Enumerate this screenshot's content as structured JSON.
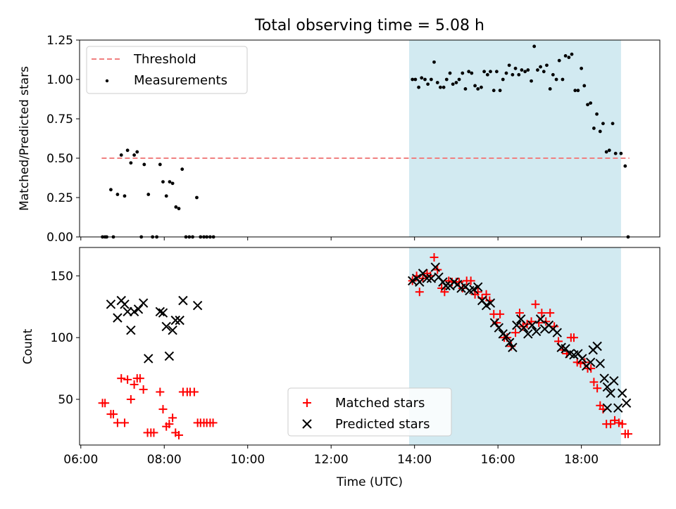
{
  "chart_data": {
    "title": "Total observing time = 5.08 h",
    "xlabel": "Time (UTC)",
    "x_ticks": [
      "06:00",
      "08:00",
      "10:00",
      "12:00",
      "14:00",
      "16:00",
      "18:00"
    ],
    "x_tick_hours": [
      6,
      8,
      10,
      12,
      14,
      16,
      18
    ],
    "xlim_hours": [
      5.97,
      19.88
    ],
    "observing_window_hours": [
      13.87,
      18.95
    ],
    "window_color": "#add8e6",
    "top": {
      "type": "scatter",
      "ylabel": "Matched/Predicted stars",
      "ylim": [
        0,
        1.25
      ],
      "y_ticks": [
        "0.00",
        "0.25",
        "0.50",
        "0.75",
        "1.00",
        "1.25"
      ],
      "y_tick_values": [
        0,
        0.25,
        0.5,
        0.75,
        1.0,
        1.25
      ],
      "threshold": {
        "name": "Threshold",
        "value": 0.5,
        "x_range_hours": [
          6.5,
          19.15
        ],
        "color": "#f08080"
      },
      "measurements_name": "Measurements",
      "measurements": [
        [
          6.52,
          0
        ],
        [
          6.58,
          0
        ],
        [
          6.62,
          0
        ],
        [
          6.72,
          0.3
        ],
        [
          6.78,
          0
        ],
        [
          6.88,
          0.27
        ],
        [
          6.97,
          0.52
        ],
        [
          7.05,
          0.26
        ],
        [
          7.12,
          0.55
        ],
        [
          7.2,
          0.47
        ],
        [
          7.28,
          0.52
        ],
        [
          7.35,
          0.54
        ],
        [
          7.45,
          0
        ],
        [
          7.52,
          0.46
        ],
        [
          7.62,
          0.27
        ],
        [
          7.72,
          0
        ],
        [
          7.82,
          0
        ],
        [
          7.9,
          0.46
        ],
        [
          7.97,
          0.35
        ],
        [
          8.05,
          0.26
        ],
        [
          8.13,
          0.35
        ],
        [
          8.2,
          0.34
        ],
        [
          8.28,
          0.19
        ],
        [
          8.35,
          0.18
        ],
        [
          8.43,
          0.43
        ],
        [
          8.52,
          0
        ],
        [
          8.6,
          0
        ],
        [
          8.68,
          0
        ],
        [
          8.78,
          0.25
        ],
        [
          8.87,
          0
        ],
        [
          8.95,
          0
        ],
        [
          9.02,
          0
        ],
        [
          9.1,
          0
        ],
        [
          9.18,
          0
        ],
        [
          13.95,
          1.0
        ],
        [
          14.02,
          1.0
        ],
        [
          14.1,
          0.95
        ],
        [
          14.17,
          1.01
        ],
        [
          14.25,
          1.0
        ],
        [
          14.32,
          0.97
        ],
        [
          14.4,
          1.0
        ],
        [
          14.47,
          1.11
        ],
        [
          14.55,
          0.98
        ],
        [
          14.62,
          0.95
        ],
        [
          14.7,
          0.95
        ],
        [
          14.77,
          1.0
        ],
        [
          14.85,
          1.04
        ],
        [
          14.92,
          0.97
        ],
        [
          15.0,
          0.98
        ],
        [
          15.07,
          1.0
        ],
        [
          15.15,
          1.04
        ],
        [
          15.22,
          0.94
        ],
        [
          15.3,
          1.05
        ],
        [
          15.37,
          1.04
        ],
        [
          15.45,
          0.96
        ],
        [
          15.52,
          0.94
        ],
        [
          15.6,
          0.95
        ],
        [
          15.67,
          1.05
        ],
        [
          15.75,
          1.03
        ],
        [
          15.82,
          1.05
        ],
        [
          15.9,
          0.93
        ],
        [
          15.97,
          1.05
        ],
        [
          16.05,
          0.93
        ],
        [
          16.12,
          1.0
        ],
        [
          16.2,
          1.04
        ],
        [
          16.27,
          1.09
        ],
        [
          16.35,
          1.03
        ],
        [
          16.42,
          1.07
        ],
        [
          16.5,
          1.03
        ],
        [
          16.57,
          1.06
        ],
        [
          16.65,
          1.05
        ],
        [
          16.72,
          1.06
        ],
        [
          16.8,
          0.99
        ],
        [
          16.87,
          1.21
        ],
        [
          16.95,
          1.06
        ],
        [
          17.02,
          1.08
        ],
        [
          17.1,
          1.05
        ],
        [
          17.17,
          1.09
        ],
        [
          17.25,
          0.94
        ],
        [
          17.32,
          1.03
        ],
        [
          17.4,
          1.0
        ],
        [
          17.47,
          1.12
        ],
        [
          17.55,
          1.0
        ],
        [
          17.62,
          1.15
        ],
        [
          17.7,
          1.14
        ],
        [
          17.77,
          1.16
        ],
        [
          17.85,
          0.93
        ],
        [
          17.92,
          0.93
        ],
        [
          18.0,
          1.07
        ],
        [
          18.07,
          0.96
        ],
        [
          18.15,
          0.84
        ],
        [
          18.22,
          0.85
        ],
        [
          18.3,
          0.69
        ],
        [
          18.37,
          0.78
        ],
        [
          18.45,
          0.67
        ],
        [
          18.52,
          0.72
        ],
        [
          18.6,
          0.54
        ],
        [
          18.67,
          0.55
        ],
        [
          18.75,
          0.72
        ],
        [
          18.82,
          0.53
        ],
        [
          18.95,
          0.53
        ],
        [
          19.05,
          0.45
        ],
        [
          19.12,
          0
        ]
      ]
    },
    "bottom": {
      "type": "scatter",
      "ylabel": "Count",
      "ylim": [
        13,
        173
      ],
      "y_ticks": [
        "50",
        "100",
        "150"
      ],
      "y_tick_values": [
        50,
        100,
        150
      ],
      "matched_name": "Matched stars",
      "predicted_name": "Predicted stars",
      "matched_color": "#ff0000",
      "predicted_color": "#000000",
      "matched": [
        [
          6.52,
          47
        ],
        [
          6.58,
          47
        ],
        [
          6.72,
          38
        ],
        [
          6.78,
          38
        ],
        [
          6.88,
          31
        ],
        [
          6.97,
          67
        ],
        [
          7.05,
          31
        ],
        [
          7.12,
          66
        ],
        [
          7.2,
          50
        ],
        [
          7.28,
          62
        ],
        [
          7.35,
          67
        ],
        [
          7.42,
          67
        ],
        [
          7.5,
          58
        ],
        [
          7.6,
          23
        ],
        [
          7.68,
          23
        ],
        [
          7.75,
          23
        ],
        [
          7.9,
          56
        ],
        [
          7.97,
          42
        ],
        [
          8.05,
          28
        ],
        [
          8.12,
          30
        ],
        [
          8.2,
          35
        ],
        [
          8.27,
          23
        ],
        [
          8.35,
          21
        ],
        [
          8.45,
          56
        ],
        [
          8.55,
          56
        ],
        [
          8.62,
          56
        ],
        [
          8.72,
          56
        ],
        [
          8.8,
          31
        ],
        [
          8.87,
          31
        ],
        [
          8.95,
          31
        ],
        [
          9.02,
          31
        ],
        [
          9.1,
          31
        ],
        [
          9.17,
          31
        ],
        [
          13.95,
          146
        ],
        [
          14.05,
          150
        ],
        [
          14.12,
          137
        ],
        [
          14.2,
          148
        ],
        [
          14.3,
          152
        ],
        [
          14.38,
          150
        ],
        [
          14.47,
          165
        ],
        [
          14.55,
          155
        ],
        [
          14.65,
          140
        ],
        [
          14.72,
          137
        ],
        [
          14.82,
          146
        ],
        [
          14.9,
          145
        ],
        [
          15.0,
          145
        ],
        [
          15.07,
          145
        ],
        [
          15.15,
          140
        ],
        [
          15.25,
          146
        ],
        [
          15.35,
          146
        ],
        [
          15.45,
          135
        ],
        [
          15.52,
          137
        ],
        [
          15.62,
          132
        ],
        [
          15.72,
          135
        ],
        [
          15.8,
          130
        ],
        [
          15.9,
          119
        ],
        [
          15.97,
          112
        ],
        [
          16.05,
          119
        ],
        [
          16.15,
          100
        ],
        [
          16.22,
          100
        ],
        [
          16.32,
          93
        ],
        [
          16.42,
          104
        ],
        [
          16.52,
          120
        ],
        [
          16.6,
          109
        ],
        [
          16.7,
          111
        ],
        [
          16.8,
          113
        ],
        [
          16.9,
          127
        ],
        [
          16.98,
          112
        ],
        [
          17.05,
          120
        ],
        [
          17.15,
          113
        ],
        [
          17.25,
          120
        ],
        [
          17.35,
          109
        ],
        [
          17.45,
          97
        ],
        [
          17.55,
          90
        ],
        [
          17.65,
          87
        ],
        [
          17.75,
          100
        ],
        [
          17.82,
          100
        ],
        [
          17.9,
          80
        ],
        [
          17.98,
          79
        ],
        [
          18.08,
          80
        ],
        [
          18.15,
          75
        ],
        [
          18.23,
          75
        ],
        [
          18.3,
          64
        ],
        [
          18.38,
          59
        ],
        [
          18.45,
          45
        ],
        [
          18.52,
          42
        ],
        [
          18.6,
          30
        ],
        [
          18.7,
          30
        ],
        [
          18.8,
          33
        ],
        [
          18.9,
          31
        ],
        [
          18.98,
          30
        ],
        [
          19.05,
          22
        ],
        [
          19.12,
          22
        ]
      ],
      "predicted": [
        [
          6.72,
          127
        ],
        [
          6.88,
          116
        ],
        [
          6.97,
          130
        ],
        [
          7.05,
          127
        ],
        [
          7.12,
          121
        ],
        [
          7.2,
          106
        ],
        [
          7.28,
          121
        ],
        [
          7.38,
          123
        ],
        [
          7.5,
          128
        ],
        [
          7.62,
          83
        ],
        [
          7.9,
          121
        ],
        [
          7.97,
          120
        ],
        [
          8.05,
          109
        ],
        [
          8.12,
          85
        ],
        [
          8.2,
          106
        ],
        [
          8.27,
          114
        ],
        [
          8.37,
          114
        ],
        [
          8.45,
          130
        ],
        [
          8.8,
          126
        ],
        [
          13.95,
          146
        ],
        [
          14.05,
          148
        ],
        [
          14.12,
          145
        ],
        [
          14.2,
          152
        ],
        [
          14.3,
          148
        ],
        [
          14.4,
          148
        ],
        [
          14.5,
          157
        ],
        [
          14.58,
          149
        ],
        [
          14.68,
          145
        ],
        [
          14.75,
          142
        ],
        [
          14.85,
          142
        ],
        [
          14.95,
          145
        ],
        [
          15.03,
          143
        ],
        [
          15.12,
          140
        ],
        [
          15.22,
          141
        ],
        [
          15.32,
          138
        ],
        [
          15.42,
          139
        ],
        [
          15.52,
          141
        ],
        [
          15.62,
          130
        ],
        [
          15.72,
          126
        ],
        [
          15.82,
          128
        ],
        [
          15.92,
          112
        ],
        [
          16.02,
          108
        ],
        [
          16.12,
          103
        ],
        [
          16.2,
          101
        ],
        [
          16.28,
          96
        ],
        [
          16.35,
          92
        ],
        [
          16.45,
          110
        ],
        [
          16.55,
          115
        ],
        [
          16.62,
          108
        ],
        [
          16.72,
          103
        ],
        [
          16.82,
          110
        ],
        [
          16.92,
          105
        ],
        [
          17.02,
          115
        ],
        [
          17.12,
          107
        ],
        [
          17.22,
          110
        ],
        [
          17.32,
          107
        ],
        [
          17.42,
          104
        ],
        [
          17.52,
          92
        ],
        [
          17.62,
          91
        ],
        [
          17.72,
          87
        ],
        [
          17.82,
          86
        ],
        [
          17.92,
          87
        ],
        [
          18.02,
          83
        ],
        [
          18.12,
          77
        ],
        [
          18.22,
          80
        ],
        [
          18.28,
          90
        ],
        [
          18.38,
          93
        ],
        [
          18.45,
          79
        ],
        [
          18.55,
          67
        ],
        [
          18.62,
          60
        ],
        [
          18.7,
          55
        ],
        [
          18.78,
          65
        ],
        [
          18.88,
          43
        ],
        [
          18.98,
          55
        ],
        [
          19.08,
          47
        ],
        [
          18.62,
          43
        ]
      ]
    }
  }
}
